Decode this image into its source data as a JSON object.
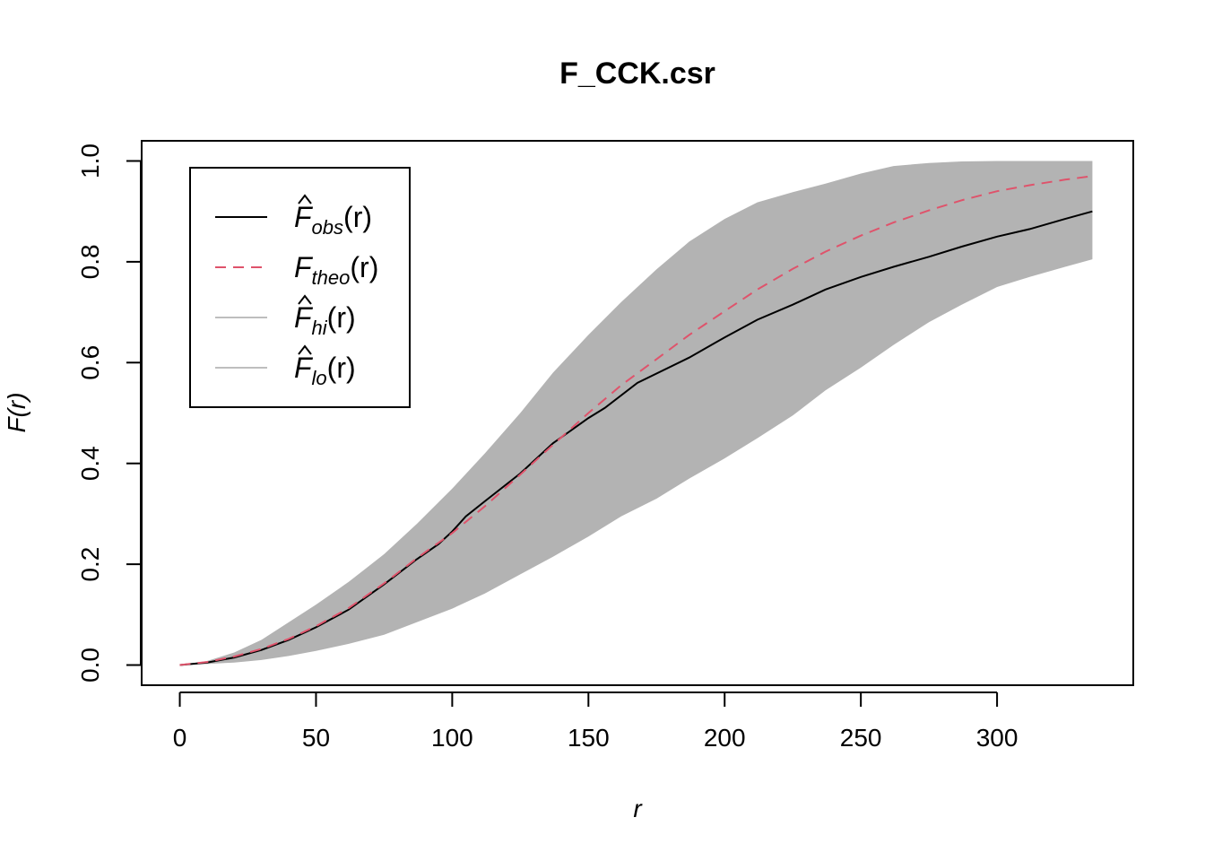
{
  "chart_data": {
    "type": "line",
    "title": "F_CCK.csr",
    "xlabel": "r",
    "ylabel": "F(r)",
    "xlim": [
      -14,
      350
    ],
    "ylim": [
      -0.04,
      1.04
    ],
    "xticks": [
      0,
      50,
      100,
      150,
      200,
      250,
      300
    ],
    "yticks": [
      0.0,
      0.2,
      0.4,
      0.6,
      0.8,
      1.0
    ],
    "xtick_labels": [
      "0",
      "50",
      "100",
      "150",
      "200",
      "250",
      "300"
    ],
    "ytick_labels": [
      "0.0",
      "0.2",
      "0.4",
      "0.6",
      "0.8",
      "1.0"
    ],
    "grid": false,
    "legend_position": "top-left",
    "legend": [
      {
        "base": "F",
        "hat": true,
        "sub": "obs",
        "arg": "(r)",
        "color": "#000000",
        "dash": "solid",
        "width": 2
      },
      {
        "base": "F",
        "hat": false,
        "sub": "theo",
        "arg": "(r)",
        "color": "#DF536B",
        "dash": "dashed",
        "width": 2
      },
      {
        "base": "F",
        "hat": true,
        "sub": "hi",
        "arg": "(r)",
        "color": "#BEBEBE",
        "dash": "solid",
        "width": 2
      },
      {
        "base": "F",
        "hat": true,
        "sub": "lo",
        "arg": "(r)",
        "color": "#BEBEBE",
        "dash": "solid",
        "width": 2
      }
    ],
    "envelope_color": "#B3B3B3",
    "series": [
      {
        "name": "obs",
        "color": "#000000",
        "dash": "solid",
        "x": [
          0,
          10,
          20,
          30,
          40,
          50,
          62,
          75,
          87,
          95,
          100,
          105,
          112,
          125,
          137,
          150,
          156,
          168,
          187,
          200,
          212,
          225,
          237,
          250,
          262,
          275,
          287,
          300,
          312,
          325,
          335
        ],
        "y": [
          0.0,
          0.005,
          0.015,
          0.03,
          0.05,
          0.075,
          0.11,
          0.16,
          0.21,
          0.24,
          0.265,
          0.295,
          0.325,
          0.38,
          0.44,
          0.49,
          0.51,
          0.56,
          0.61,
          0.65,
          0.685,
          0.715,
          0.745,
          0.77,
          0.79,
          0.81,
          0.83,
          0.85,
          0.865,
          0.885,
          0.9
        ]
      },
      {
        "name": "theo",
        "color": "#DF536B",
        "dash": "dashed",
        "x": [
          0,
          10,
          20,
          30,
          40,
          50,
          62,
          75,
          87,
          100,
          112,
          125,
          137,
          150,
          162,
          175,
          187,
          200,
          212,
          225,
          237,
          250,
          262,
          275,
          287,
          300,
          312,
          325,
          335
        ],
        "y": [
          0.0,
          0.006,
          0.017,
          0.032,
          0.052,
          0.077,
          0.113,
          0.162,
          0.212,
          0.262,
          0.315,
          0.378,
          0.437,
          0.5,
          0.555,
          0.607,
          0.655,
          0.702,
          0.745,
          0.786,
          0.82,
          0.852,
          0.878,
          0.902,
          0.922,
          0.94,
          0.952,
          0.963,
          0.97
        ]
      },
      {
        "name": "hi",
        "color": "#BEBEBE",
        "dash": "solid",
        "x": [
          0,
          10,
          20,
          30,
          40,
          50,
          62,
          75,
          87,
          100,
          112,
          125,
          137,
          150,
          162,
          175,
          187,
          200,
          212,
          225,
          237,
          250,
          262,
          275,
          287,
          300,
          312,
          325,
          335
        ],
        "y": [
          0.0,
          0.008,
          0.025,
          0.05,
          0.085,
          0.12,
          0.165,
          0.22,
          0.28,
          0.35,
          0.42,
          0.5,
          0.58,
          0.655,
          0.72,
          0.785,
          0.84,
          0.885,
          0.918,
          0.938,
          0.955,
          0.975,
          0.99,
          0.996,
          0.999,
          1.0,
          1.0,
          1.0,
          1.0
        ]
      },
      {
        "name": "lo",
        "color": "#BEBEBE",
        "dash": "solid",
        "x": [
          0,
          10,
          20,
          30,
          40,
          50,
          62,
          75,
          87,
          100,
          112,
          125,
          137,
          150,
          162,
          175,
          187,
          200,
          212,
          225,
          237,
          250,
          262,
          275,
          287,
          300,
          312,
          325,
          335
        ],
        "y": [
          0.0,
          0.002,
          0.005,
          0.01,
          0.018,
          0.028,
          0.042,
          0.06,
          0.085,
          0.112,
          0.142,
          0.18,
          0.215,
          0.255,
          0.295,
          0.33,
          0.37,
          0.41,
          0.45,
          0.495,
          0.545,
          0.59,
          0.635,
          0.68,
          0.715,
          0.75,
          0.77,
          0.79,
          0.805
        ]
      }
    ]
  }
}
